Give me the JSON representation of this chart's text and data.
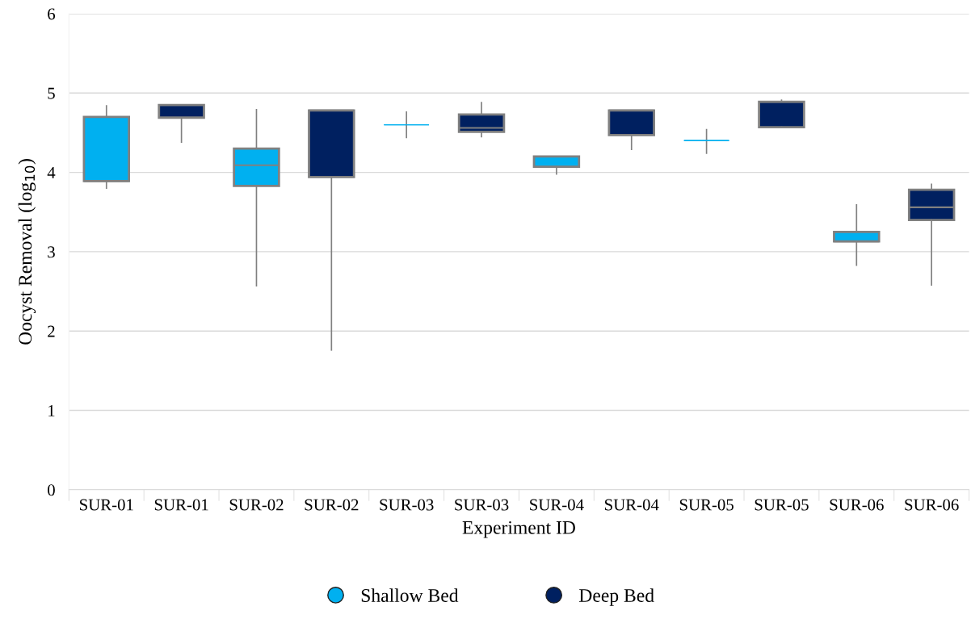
{
  "chart_data": {
    "type": "box",
    "xlabel": "Experiment ID",
    "ylabel": "Oocyst Removal (log$_{10}$)",
    "categories": [
      "SUR-01",
      "SUR-01",
      "SUR-02",
      "SUR-02",
      "SUR-03",
      "SUR-03",
      "SUR-04",
      "SUR-04",
      "SUR-05",
      "SUR-05",
      "SUR-06",
      "SUR-06"
    ],
    "series": [
      {
        "name": "Shallow Bed",
        "color": "#00b0f0",
        "boxes": [
          {
            "low": 3.8,
            "q1": 3.89,
            "median": 3.89,
            "q3": 4.7,
            "high": 4.84
          },
          null,
          {
            "low": 2.57,
            "q1": 3.83,
            "median": 4.09,
            "q3": 4.3,
            "high": 4.79
          },
          null,
          {
            "low": 4.44,
            "q1": 4.6,
            "median": 4.6,
            "q3": 4.6,
            "high": 4.76
          },
          null,
          {
            "low": 3.98,
            "q1": 4.07,
            "median": 4.07,
            "q3": 4.2,
            "high": 4.2
          },
          null,
          {
            "low": 4.24,
            "q1": 4.4,
            "median": 4.4,
            "q3": 4.4,
            "high": 4.54
          },
          null,
          {
            "low": 2.83,
            "q1": 3.13,
            "median": 3.13,
            "q3": 3.25,
            "high": 3.59
          },
          null
        ]
      },
      {
        "name": "Deep Bed",
        "color": "#002060",
        "boxes": [
          null,
          {
            "low": 4.38,
            "q1": 4.69,
            "median": 4.85,
            "q3": 4.85,
            "high": 4.85
          },
          null,
          {
            "low": 1.76,
            "q1": 3.94,
            "median": 4.78,
            "q3": 4.78,
            "high": 4.78
          },
          null,
          {
            "low": 4.45,
            "q1": 4.51,
            "median": 4.56,
            "q3": 4.73,
            "high": 4.88
          },
          null,
          {
            "low": 4.29,
            "q1": 4.47,
            "median": 4.78,
            "q3": 4.78,
            "high": 4.78
          },
          null,
          {
            "low": 4.57,
            "q1": 4.57,
            "median": 4.89,
            "q3": 4.89,
            "high": 4.91
          },
          null,
          {
            "low": 2.58,
            "q1": 3.4,
            "median": 3.56,
            "q3": 3.78,
            "high": 3.85
          }
        ]
      }
    ],
    "ylim": [
      0,
      6
    ],
    "yticks": [
      0,
      1,
      2,
      3,
      4,
      5,
      6
    ],
    "grid": "y",
    "legend": "bottom"
  }
}
